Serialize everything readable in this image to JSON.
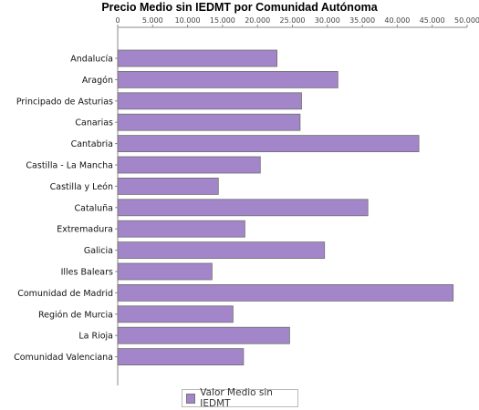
{
  "chart_data": {
    "type": "bar",
    "orientation": "horizontal",
    "title": "Precio Medio sin IEDMT por Comunidad Autónoma",
    "xlabel": "",
    "ylabel": "",
    "xlim": [
      0,
      50000
    ],
    "x_ticks": [
      0,
      5000,
      10000,
      15000,
      20000,
      25000,
      30000,
      35000,
      40000,
      45000,
      50000
    ],
    "x_tick_labels": [
      "0",
      "5.000",
      "10.000",
      "15.000",
      "20.000",
      "25.000",
      "30.000",
      "35.000",
      "40.000",
      "45.000",
      "50.000"
    ],
    "x_axis_position": "top",
    "grid": false,
    "legend_position": "bottom",
    "categories": [
      "Andalucía",
      "Aragón",
      "Principado de Asturias",
      "Canarias",
      "Cantabria",
      "Castilla - La Mancha",
      "Castilla y León",
      "Cataluña",
      "Extremadura",
      "Galicia",
      "Illes Balears",
      "Comunidad de Madrid",
      "Región de Murcia",
      "La Rioja",
      "Comunidad Valenciana"
    ],
    "series": [
      {
        "name": "Valor Medio sin IEDMT",
        "color": "#a386c9",
        "values": [
          22800,
          31500,
          26300,
          26100,
          43100,
          20400,
          14400,
          35800,
          18200,
          29600,
          13500,
          48000,
          16500,
          24600,
          18000
        ]
      }
    ]
  }
}
